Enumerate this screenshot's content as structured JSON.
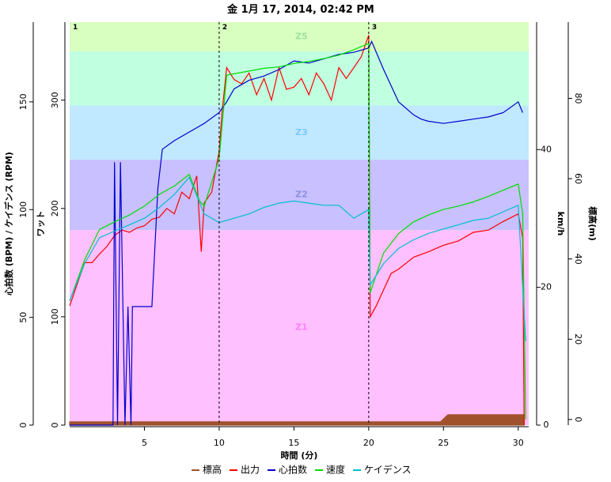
{
  "chart_data": {
    "type": "line",
    "title": "金 1月 17, 2014, 02:42 PM",
    "x_label": "時間 (分)",
    "xlim": [
      0,
      30.7
    ],
    "xticks": [
      5,
      10,
      15,
      20,
      25,
      30
    ],
    "axes": {
      "bpm": {
        "label": "心拍数 (BPM) / ケイデンス (RPM)",
        "lim": [
          0,
          187
        ],
        "ticks": [
          0,
          50,
          100,
          150
        ],
        "side": "left"
      },
      "watt": {
        "label": "ワット",
        "lim": [
          0,
          372
        ],
        "ticks": [
          0,
          100,
          200,
          300
        ],
        "side": "left"
      },
      "kmh": {
        "label": "km/h",
        "lim": [
          0,
          58.5
        ],
        "ticks": [
          0,
          20,
          40
        ],
        "side": "right"
      },
      "elev": {
        "label": "標高(m)",
        "lim": [
          -1.4,
          99
        ],
        "ticks": [
          0,
          20,
          40,
          60,
          80
        ],
        "side": "right"
      }
    },
    "zones": [
      {
        "label": "Z1",
        "range": [
          0,
          180
        ],
        "color": "#ffc0ff",
        "label_color": "#ff80ff"
      },
      {
        "label": "Z2",
        "range": [
          180,
          245
        ],
        "color": "#c8c0ff",
        "label_color": "#9090e0"
      },
      {
        "label": "Z3",
        "range": [
          245,
          295
        ],
        "color": "#c0e8ff",
        "label_color": "#80c8ff"
      },
      {
        "range": [
          295,
          345
        ],
        "color": "#c0ffe0"
      },
      {
        "label": "Z5",
        "range": [
          345,
          372
        ],
        "color": "#d8ffc0",
        "label_color": "#a0e0a0"
      }
    ],
    "intervals": [
      {
        "label": "1",
        "x": 0
      },
      {
        "label": "2",
        "x": 10
      },
      {
        "label": "3",
        "x": 20
      }
    ],
    "series": [
      {
        "name": "標高",
        "color": "#a0522d",
        "axis": "elev",
        "fill": true,
        "x": [
          0,
          24.8,
          25.3,
          30.4
        ],
        "values": [
          -0.6,
          -0.6,
          1.2,
          1.2
        ]
      },
      {
        "name": "出力",
        "color": "#ff0000",
        "axis": "watt",
        "x": [
          0,
          0.5,
          1,
          1.5,
          2,
          2.5,
          3,
          3.5,
          4,
          4.5,
          5,
          5.5,
          6,
          6.5,
          7,
          7.5,
          8,
          8.5,
          8.8,
          9,
          9.5,
          10,
          10.2,
          10.5,
          11,
          11.5,
          12,
          12.5,
          13,
          13.5,
          14,
          14.5,
          15,
          15.5,
          16,
          16.5,
          17,
          17.5,
          18,
          18.5,
          19,
          19.5,
          20,
          20.1,
          20.5,
          21,
          21.5,
          22,
          23,
          24,
          25,
          26,
          27,
          28,
          29,
          30,
          30.3,
          30.4
        ],
        "values": [
          110,
          130,
          150,
          150,
          158,
          165,
          175,
          180,
          178,
          182,
          184,
          190,
          192,
          200,
          195,
          215,
          209,
          230,
          160,
          205,
          215,
          253,
          290,
          330,
          319,
          315,
          325,
          305,
          320,
          300,
          330,
          310,
          312,
          320,
          305,
          325,
          315,
          300,
          330,
          320,
          330,
          340,
          360,
          100,
          110,
          125,
          140,
          144,
          155,
          160,
          166,
          170,
          178,
          180,
          188,
          195,
          173,
          0
        ]
      },
      {
        "name": "心拍数",
        "color": "#0000cc",
        "axis": "bpm",
        "x": [
          0,
          2.9,
          3.0,
          3.2,
          3.4,
          3.7,
          3.9,
          4.1,
          4.2,
          5.5,
          5.9,
          6.2,
          7,
          8,
          9,
          10,
          10.5,
          11,
          12,
          13,
          14,
          15,
          16,
          17,
          18,
          19,
          20,
          20.2,
          21,
          22,
          23,
          23.5,
          24,
          25,
          26,
          27,
          28,
          29,
          30,
          30.3
        ],
        "values": [
          0,
          0,
          122,
          0,
          122,
          0,
          55,
          0,
          55,
          55,
          110,
          128,
          132,
          136,
          140,
          145,
          150,
          156,
          160,
          162,
          165,
          169,
          168,
          170,
          172,
          173,
          175,
          178,
          165,
          150,
          144,
          142,
          141,
          140,
          141,
          142,
          143,
          145,
          150,
          145
        ]
      },
      {
        "name": "速度",
        "color": "#00dd00",
        "axis": "kmh",
        "x": [
          0,
          1,
          2,
          3,
          4,
          5,
          6,
          7,
          8,
          8.7,
          9,
          10,
          10.5,
          12,
          13,
          14,
          15,
          16,
          17,
          18,
          19,
          20,
          20.1,
          21,
          22,
          23,
          24,
          25,
          26,
          27,
          28,
          29,
          30,
          30.3,
          30.5
        ],
        "values": [
          18,
          24,
          28.4,
          29.5,
          30.5,
          31.8,
          33.5,
          34.7,
          36.4,
          32.5,
          31.8,
          38.7,
          50.8,
          51.4,
          51.8,
          52,
          52.5,
          52.8,
          53.2,
          53.7,
          54.5,
          55.4,
          19.2,
          25,
          27.8,
          29.5,
          30.5,
          31.3,
          31.8,
          32.4,
          33.2,
          34.1,
          35,
          30.7,
          0.8
        ]
      },
      {
        "name": "ケイデンス",
        "color": "#00c0d0",
        "axis": "bpm",
        "x": [
          0,
          1,
          2,
          3,
          4,
          5,
          6,
          7,
          8,
          9,
          10,
          11,
          12,
          13,
          14,
          15,
          16,
          17,
          18,
          19,
          20,
          20.1,
          21,
          22,
          23,
          24,
          25,
          26,
          27,
          28,
          29,
          30,
          30.5
        ],
        "values": [
          57.7,
          75,
          87,
          90,
          93,
          96,
          101,
          107,
          115,
          98,
          94,
          96,
          98,
          101,
          103,
          104,
          103,
          102,
          102,
          96,
          100,
          65,
          75,
          82,
          86,
          89,
          91,
          93,
          95,
          96,
          99,
          102,
          39
        ]
      }
    ]
  }
}
